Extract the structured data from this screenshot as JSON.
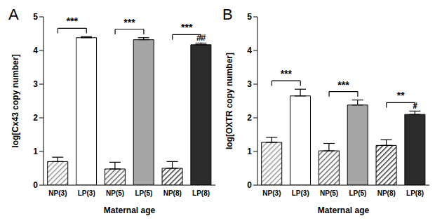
{
  "chart_data": [
    {
      "panel": "A",
      "type": "bar",
      "x_label": "Maternal age",
      "y_label": "log[Cx43 copy number]",
      "categories": [
        "NP(3)",
        "LP(3)",
        "NP(5)",
        "LP(5)",
        "NP(8)",
        "LP(8)"
      ],
      "values": [
        0.7,
        4.38,
        0.48,
        4.32,
        0.5,
        4.17
      ],
      "errors": [
        0.13,
        0.03,
        0.2,
        0.06,
        0.2,
        0.05
      ],
      "colors": [
        "#9a9a9a",
        "#ffffff",
        "#666666",
        "#a6a6a6",
        "#333333",
        "#2b2b2b"
      ],
      "ylim": [
        0,
        5
      ],
      "yticks": [
        0,
        1,
        2,
        3,
        4,
        5
      ],
      "comparisons": [
        {
          "from": "NP(3)",
          "to": "LP(3)",
          "label": "***"
        },
        {
          "from": "NP(5)",
          "to": "LP(5)",
          "label": "***"
        },
        {
          "from": "NP(8)",
          "to": "LP(8)",
          "label": "***"
        }
      ],
      "annotations": [
        {
          "category": "LP(8)",
          "label": "##"
        }
      ]
    },
    {
      "panel": "B",
      "type": "bar",
      "x_label": "Maternal age",
      "y_label": "log[OXTR copy number]",
      "categories": [
        "NP(3)",
        "LP(3)",
        "NP(5)",
        "LP(5)",
        "NP(8)",
        "LP(8)"
      ],
      "values": [
        1.27,
        2.65,
        1.02,
        2.38,
        1.18,
        2.1
      ],
      "errors": [
        0.15,
        0.2,
        0.22,
        0.15,
        0.17,
        0.1
      ],
      "colors": [
        "#9a9a9a",
        "#ffffff",
        "#666666",
        "#a6a6a6",
        "#333333",
        "#2b2b2b"
      ],
      "ylim": [
        0,
        5
      ],
      "yticks": [
        0,
        1,
        2,
        3,
        4,
        5
      ],
      "comparisons": [
        {
          "from": "NP(3)",
          "to": "LP(3)",
          "label": "***"
        },
        {
          "from": "NP(5)",
          "to": "LP(5)",
          "label": "***"
        },
        {
          "from": "NP(8)",
          "to": "LP(8)",
          "label": "**"
        }
      ],
      "annotations": [
        {
          "category": "LP(8)",
          "label": "#"
        }
      ]
    }
  ]
}
